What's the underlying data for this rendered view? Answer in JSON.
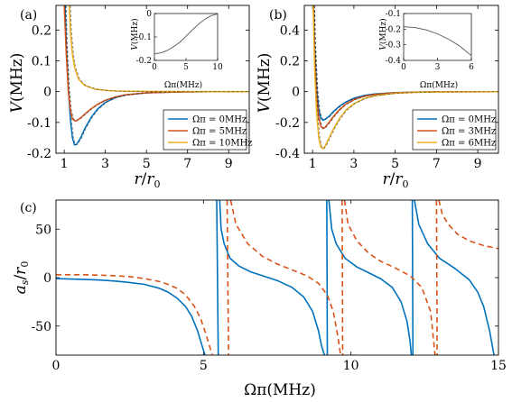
{
  "colors": {
    "blue": "#0072bd",
    "orange": "#d95319",
    "yellow": "#edb120",
    "inset": "#555555",
    "axis": "#000000"
  },
  "chart_data": [
    {
      "panel": "(a)",
      "type": "line",
      "xlabel": "r/r0",
      "ylabel": "V(MHz)",
      "xlim": [
        0.6,
        10
      ],
      "ylim": [
        -0.2,
        0.28
      ],
      "xticks": [
        "1",
        "3",
        "5",
        "7",
        "9"
      ],
      "xtick_values": [
        1,
        3,
        5,
        7,
        9
      ],
      "yticks": [
        "-0.2",
        "-0.1",
        "0",
        "0.1",
        "0.2"
      ],
      "ytick_values": [
        -0.2,
        -0.1,
        0,
        0.1,
        0.2
      ],
      "legend": {
        "position": "bottom-right",
        "entries": [
          "Ωπ = 0MHz",
          "Ωπ = 5MHz",
          "Ωπ = 10MHz"
        ]
      },
      "series": [
        {
          "name": "Ωπ = 0MHz",
          "color": "blue",
          "x": [
            1.05,
            1.1,
            1.2,
            1.3,
            1.4,
            1.5,
            1.6,
            1.8,
            2.0,
            2.3,
            2.6,
            3.0,
            3.5,
            4.0,
            5.0,
            6.0,
            7.0,
            8.0,
            10.0
          ],
          "y": [
            0.28,
            0.15,
            0.01,
            -0.09,
            -0.15,
            -0.173,
            -0.171,
            -0.15,
            -0.12,
            -0.085,
            -0.058,
            -0.035,
            -0.019,
            -0.011,
            -0.004,
            -0.002,
            -0.001,
            -0.0005,
            0.0
          ]
        },
        {
          "name": "Ωπ = 5MHz",
          "color": "orange",
          "x": [
            1.0,
            1.1,
            1.2,
            1.3,
            1.4,
            1.5,
            1.6,
            1.8,
            2.0,
            2.3,
            2.6,
            3.0,
            3.5,
            4.0,
            5.0,
            6.0,
            7.0,
            8.0,
            10.0
          ],
          "y": [
            0.28,
            0.12,
            0.0,
            -0.06,
            -0.088,
            -0.095,
            -0.094,
            -0.085,
            -0.073,
            -0.056,
            -0.042,
            -0.028,
            -0.017,
            -0.01,
            -0.004,
            -0.002,
            -0.001,
            -0.0005,
            0.0
          ]
        },
        {
          "name": "Ωπ = 10MHz",
          "color": "yellow",
          "x": [
            1.25,
            1.3,
            1.4,
            1.5,
            1.7,
            2.0,
            2.5,
            3.0,
            3.5,
            4.0,
            5.0,
            7.0,
            10.0
          ],
          "y": [
            0.28,
            0.2,
            0.12,
            0.08,
            0.04,
            0.02,
            0.008,
            0.004,
            0.002,
            0.0015,
            0.0008,
            0.0003,
            0.0
          ]
        }
      ],
      "inset": {
        "type": "line",
        "xlabel": "Ωπ(MHz)",
        "ylabel": "V(MHz)",
        "xlim": [
          0,
          10
        ],
        "ylim": [
          -0.2,
          0.0
        ],
        "xticks": [
          "0",
          "5",
          "10"
        ],
        "xtick_values": [
          0,
          5,
          10
        ],
        "yticks": [
          "-0.2",
          "-0.1",
          "0"
        ],
        "ytick_values": [
          -0.2,
          -0.1,
          0
        ],
        "x": [
          0,
          1,
          2,
          3,
          4,
          5,
          6,
          7,
          8,
          9,
          10
        ],
        "y": [
          -0.172,
          -0.168,
          -0.158,
          -0.142,
          -0.123,
          -0.097,
          -0.07,
          -0.045,
          -0.024,
          -0.009,
          -0.002
        ]
      }
    },
    {
      "panel": "(b)",
      "type": "line",
      "xlabel": "r/r0",
      "ylabel": "V(MHz)",
      "xlim": [
        0.6,
        10
      ],
      "ylim": [
        -0.4,
        0.56
      ],
      "xticks": [
        "1",
        "3",
        "5",
        "7",
        "9"
      ],
      "xtick_values": [
        1,
        3,
        5,
        7,
        9
      ],
      "yticks": [
        "-0.4",
        "-0.2",
        "0",
        "0.2",
        "0.4"
      ],
      "ytick_values": [
        -0.4,
        -0.2,
        0,
        0.2,
        0.4
      ],
      "legend": {
        "position": "bottom-right",
        "entries": [
          "Ωπ = 0MHz",
          "Ωπ = 3MHz",
          "Ωπ = 6MHz"
        ]
      },
      "series": [
        {
          "name": "Ωπ = 0MHz",
          "color": "blue",
          "x": [
            1.05,
            1.1,
            1.2,
            1.3,
            1.4,
            1.5,
            1.6,
            1.8,
            2.0,
            2.3,
            2.6,
            3.0,
            3.5,
            4.0,
            5.0,
            6.0,
            7.0,
            10.0
          ],
          "y": [
            0.56,
            0.3,
            0.02,
            -0.12,
            -0.17,
            -0.185,
            -0.18,
            -0.16,
            -0.13,
            -0.095,
            -0.068,
            -0.043,
            -0.025,
            -0.015,
            -0.006,
            -0.003,
            -0.001,
            0.0
          ]
        },
        {
          "name": "Ωπ = 3MHz",
          "color": "orange",
          "x": [
            1.04,
            1.1,
            1.2,
            1.3,
            1.4,
            1.5,
            1.6,
            1.8,
            2.0,
            2.3,
            2.6,
            3.0,
            3.5,
            4.0,
            5.0,
            6.0,
            7.0,
            10.0
          ],
          "y": [
            0.56,
            0.24,
            -0.03,
            -0.17,
            -0.225,
            -0.24,
            -0.232,
            -0.2,
            -0.163,
            -0.117,
            -0.082,
            -0.052,
            -0.03,
            -0.018,
            -0.007,
            -0.003,
            -0.0015,
            0.0
          ]
        },
        {
          "name": "Ωπ = 6MHz",
          "color": "yellow",
          "x": [
            1.03,
            1.1,
            1.2,
            1.3,
            1.4,
            1.5,
            1.6,
            1.8,
            2.0,
            2.3,
            2.6,
            3.0,
            3.5,
            4.0,
            5.0,
            6.0,
            7.0,
            10.0
          ],
          "y": [
            0.56,
            0.15,
            -0.15,
            -0.3,
            -0.36,
            -0.37,
            -0.355,
            -0.3,
            -0.245,
            -0.175,
            -0.122,
            -0.078,
            -0.045,
            -0.027,
            -0.011,
            -0.005,
            -0.002,
            0.0
          ]
        }
      ],
      "inset": {
        "type": "line",
        "xlabel": "Ωπ(MHz)",
        "ylabel": "V(MHz)",
        "xlim": [
          0,
          6
        ],
        "ylim": [
          -0.4,
          -0.1
        ],
        "xticks": [
          "0",
          "3",
          "6"
        ],
        "xtick_values": [
          0,
          3,
          6
        ],
        "yticks": [
          "-0.1",
          "-0.2",
          "-0.3",
          "-0.4"
        ],
        "ytick_values": [
          -0.1,
          -0.2,
          -0.3,
          -0.4
        ],
        "x": [
          0,
          1,
          2,
          3,
          4,
          5,
          6
        ],
        "y": [
          -0.185,
          -0.19,
          -0.205,
          -0.23,
          -0.265,
          -0.31,
          -0.37
        ]
      }
    },
    {
      "panel": "(c)",
      "type": "line",
      "xlabel": "Ωπ(MHz)",
      "ylabel": "as/r0",
      "xlim": [
        0,
        15
      ],
      "ylim": [
        -80,
        80
      ],
      "xticks": [
        "0",
        "5",
        "10",
        "15"
      ],
      "xtick_values": [
        0,
        5,
        10,
        15
      ],
      "yticks": [
        "-50",
        "0",
        "50"
      ],
      "ytick_values": [
        -50,
        0,
        50
      ],
      "series": [
        {
          "name": "",
          "color": "blue",
          "style": "solid",
          "segments": [
            {
              "x": [
                0,
                0.5,
                1,
                1.5,
                2,
                2.5,
                3,
                3.5,
                3.8,
                4.1,
                4.4,
                4.6,
                4.8,
                4.95,
                5.05
              ],
              "y": [
                -1,
                -1.5,
                -2,
                -2.5,
                -3.5,
                -5,
                -7,
                -11,
                -15,
                -21,
                -30,
                -40,
                -55,
                -70,
                -80
              ]
            },
            {
              "x": [
                5.45,
                5.5
              ],
              "y": [
                80,
                -80
              ]
            },
            {
              "x": [
                5.55,
                5.6,
                5.7,
                5.9,
                6.2,
                6.6,
                7.0,
                7.5,
                8.0,
                8.4,
                8.7,
                8.9,
                9.0,
                9.1
              ],
              "y": [
                80,
                50,
                35,
                20,
                12,
                6,
                2,
                -3,
                -10,
                -20,
                -35,
                -55,
                -70,
                -80
              ]
            },
            {
              "x": [
                9.18,
                9.2
              ],
              "y": [
                80,
                -80
              ]
            },
            {
              "x": [
                9.25,
                9.35,
                9.5,
                9.8,
                10.2,
                10.6,
                11.0,
                11.4,
                11.7,
                11.9,
                12.0,
                12.05
              ],
              "y": [
                80,
                50,
                35,
                20,
                11,
                5,
                -1,
                -10,
                -25,
                -45,
                -65,
                -80
              ]
            },
            {
              "x": [
                12.08,
                12.1
              ],
              "y": [
                80,
                -80
              ]
            },
            {
              "x": [
                12.15,
                12.3,
                12.6,
                13.0,
                13.5,
                14.0,
                14.3,
                14.5,
                14.7,
                14.85
              ],
              "y": [
                80,
                55,
                35,
                20,
                10,
                -2,
                -15,
                -30,
                -55,
                -80
              ]
            }
          ]
        },
        {
          "name": "",
          "color": "orange",
          "style": "dashed",
          "segments": [
            {
              "x": [
                0,
                0.5,
                1,
                1.5,
                2,
                2.5,
                3,
                3.5,
                3.8,
                4.1,
                4.4,
                4.7,
                4.9,
                5.1,
                5.3
              ],
              "y": [
                3,
                3,
                3,
                2.5,
                2,
                1,
                -1,
                -4,
                -7,
                -11,
                -18,
                -30,
                -42,
                -60,
                -80
              ]
            },
            {
              "x": [
                5.8,
                5.85
              ],
              "y": [
                80,
                -80
              ]
            },
            {
              "x": [
                5.92,
                6.1,
                6.5,
                7.0,
                7.5,
                8.0,
                8.5,
                8.9,
                9.2,
                9.4,
                9.55,
                9.65
              ],
              "y": [
                80,
                55,
                35,
                22,
                14,
                8,
                2,
                -6,
                -18,
                -35,
                -60,
                -80
              ]
            },
            {
              "x": [
                9.7,
                9.72
              ],
              "y": [
                80,
                -80
              ]
            },
            {
              "x": [
                9.78,
                9.9,
                10.2,
                10.6,
                11.0,
                11.5,
                12.0,
                12.4,
                12.7,
                12.85
              ],
              "y": [
                80,
                55,
                38,
                25,
                17,
                10,
                2,
                -10,
                -35,
                -80
              ]
            },
            {
              "x": [
                12.9,
                12.92
              ],
              "y": [
                80,
                -80
              ]
            },
            {
              "x": [
                12.98,
                13.1,
                13.3,
                13.6,
                14.0,
                14.5,
                15.0
              ],
              "y": [
                80,
                65,
                55,
                45,
                38,
                33,
                30
              ]
            }
          ]
        }
      ]
    }
  ]
}
